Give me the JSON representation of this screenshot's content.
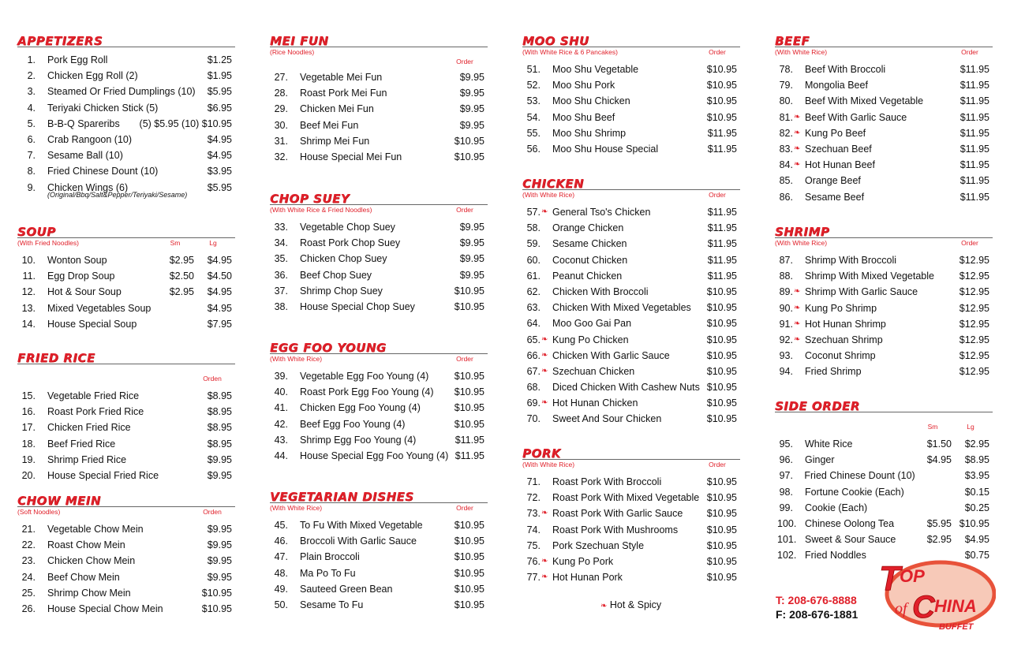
{
  "sections": [
    {
      "title": "APPETIZERS",
      "subtitle": "",
      "headers": [],
      "items": [
        {
          "num": "1.",
          "name": "Pork Egg Roll",
          "prices": [
            "$1.25"
          ]
        },
        {
          "num": "2.",
          "name": "Chicken Egg Roll (2)",
          "prices": [
            "$1.95"
          ]
        },
        {
          "num": "3.",
          "name": "Steamed Or Fried Dumplings (10)",
          "prices": [
            "$5.95"
          ]
        },
        {
          "num": "4.",
          "name": "Teriyaki Chicken Stick (5)",
          "prices": [
            "$6.95"
          ]
        },
        {
          "num": "5.",
          "name": "B-B-Q Spareribs",
          "prices": [
            "(5) $5.95 (10) $10.95"
          ]
        },
        {
          "num": "6.",
          "name": "Crab Rangoon (10)",
          "prices": [
            "$4.95"
          ]
        },
        {
          "num": "7.",
          "name": "Sesame Ball (10)",
          "prices": [
            "$4.95"
          ]
        },
        {
          "num": "8.",
          "name": "Fried Chinese Dount (10)",
          "prices": [
            "$3.95"
          ]
        },
        {
          "num": "9.",
          "name": "Chicken Wings (6)",
          "prices": [
            "$5.95"
          ],
          "note": "(Original/Bbq/Salt&Pepper/Teriyaki/Sesame)"
        }
      ]
    },
    {
      "title": "SOUP",
      "subtitle": "(With Fried Noodles)",
      "headers": [
        "Sm",
        "Lg"
      ],
      "items": [
        {
          "num": "10.",
          "name": "Wonton Soup",
          "prices": [
            "$2.95",
            "$4.95"
          ]
        },
        {
          "num": "11.",
          "name": "Egg Drop Soup",
          "prices": [
            "$2.50",
            "$4.50"
          ]
        },
        {
          "num": "12.",
          "name": "Hot & Sour Soup",
          "prices": [
            "$2.95",
            "$4.95"
          ]
        },
        {
          "num": "13.",
          "name": "Mixed Vegetables Soup",
          "prices": [
            "",
            "$4.95"
          ]
        },
        {
          "num": "14.",
          "name": "House Special Soup",
          "prices": [
            "",
            "$7.95"
          ]
        }
      ]
    },
    {
      "title": "FRIED RICE",
      "subtitle": "",
      "headers": [
        "Orden"
      ],
      "items": [
        {
          "num": "15.",
          "name": "Vegetable Fried Rice",
          "prices": [
            "$8.95"
          ]
        },
        {
          "num": "16.",
          "name": "Roast Pork Fried Rice",
          "prices": [
            "$8.95"
          ]
        },
        {
          "num": "17.",
          "name": "Chicken Fried Rice",
          "prices": [
            "$8.95"
          ]
        },
        {
          "num": "18.",
          "name": "Beef Fried Rice",
          "prices": [
            "$8.95"
          ]
        },
        {
          "num": "19.",
          "name": "Shrimp Fried Rice",
          "prices": [
            "$9.95"
          ]
        },
        {
          "num": "20.",
          "name": "House Special Fried Rice",
          "prices": [
            "$9.95"
          ]
        }
      ]
    },
    {
      "title": "CHOW MEIN",
      "subtitle": "(Soft Noodles)",
      "headers": [
        "Orden"
      ],
      "items": [
        {
          "num": "21.",
          "name": "Vegetable Chow Mein",
          "prices": [
            "$9.95"
          ]
        },
        {
          "num": "22.",
          "name": "Roast Chow Mein",
          "prices": [
            "$9.95"
          ]
        },
        {
          "num": "23.",
          "name": "Chicken Chow Mein",
          "prices": [
            "$9.95"
          ]
        },
        {
          "num": "24.",
          "name": "Beef Chow Mein",
          "prices": [
            "$9.95"
          ]
        },
        {
          "num": "25.",
          "name": "Shrimp Chow Mein",
          "prices": [
            "$10.95"
          ]
        },
        {
          "num": "26.",
          "name": "House Special Chow Mein",
          "prices": [
            "$10.95"
          ]
        }
      ]
    },
    {
      "title": "MEI FUN",
      "subtitle": "(Rice Noodles)",
      "headers": [
        "Order"
      ],
      "items": [
        {
          "num": "27.",
          "name": "Vegetable Mei Fun",
          "prices": [
            "$9.95"
          ]
        },
        {
          "num": "28.",
          "name": "Roast Pork Mei Fun",
          "prices": [
            "$9.95"
          ]
        },
        {
          "num": "29.",
          "name": "Chicken Mei Fun",
          "prices": [
            "$9.95"
          ]
        },
        {
          "num": "30.",
          "name": "Beef Mei Fun",
          "prices": [
            "$9.95"
          ]
        },
        {
          "num": "31.",
          "name": "Shrimp Mei Fun",
          "prices": [
            "$10.95"
          ]
        },
        {
          "num": "32.",
          "name": "House Special Mei Fun",
          "prices": [
            "$10.95"
          ]
        }
      ]
    },
    {
      "title": "CHOP SUEY",
      "subtitle": "(With White Rice & Fried Noodles)",
      "headers": [
        "Order"
      ],
      "items": [
        {
          "num": "33.",
          "name": "Vegetable Chop Suey",
          "prices": [
            "$9.95"
          ]
        },
        {
          "num": "34.",
          "name": "Roast Pork Chop Suey",
          "prices": [
            "$9.95"
          ]
        },
        {
          "num": "35.",
          "name": "Chicken Chop Suey",
          "prices": [
            "$9.95"
          ]
        },
        {
          "num": "36.",
          "name": "Beef Chop Suey",
          "prices": [
            "$9.95"
          ]
        },
        {
          "num": "37.",
          "name": "Shrimp Chop Suey",
          "prices": [
            "$10.95"
          ]
        },
        {
          "num": "38.",
          "name": "House Special Chop Suey",
          "prices": [
            "$10.95"
          ]
        }
      ]
    },
    {
      "title": "EGG FOO YOUNG",
      "subtitle": "(With White Rice)",
      "headers": [
        "Order"
      ],
      "items": [
        {
          "num": "39.",
          "name": "Vegetable Egg Foo Young (4)",
          "prices": [
            "$10.95"
          ]
        },
        {
          "num": "40.",
          "name": "Roast Pork Egg Foo Young (4)",
          "prices": [
            "$10.95"
          ]
        },
        {
          "num": "41.",
          "name": "Chicken Egg Foo Young (4)",
          "prices": [
            "$10.95"
          ]
        },
        {
          "num": "42.",
          "name": "Beef Egg Foo Young (4)",
          "prices": [
            "$10.95"
          ]
        },
        {
          "num": "43.",
          "name": "Shrimp Egg Foo Young (4)",
          "prices": [
            "$11.95"
          ]
        },
        {
          "num": "44.",
          "name": "House Special Egg Foo Young (4)",
          "prices": [
            "$11.95"
          ]
        }
      ]
    },
    {
      "title": "VEGETARIAN DISHES",
      "subtitle": "(With White Rice)",
      "headers": [
        "Order"
      ],
      "items": [
        {
          "num": "45.",
          "name": "To Fu With Mixed Vegetable",
          "prices": [
            "$10.95"
          ]
        },
        {
          "num": "46.",
          "name": "Broccoli With Garlic Sauce",
          "prices": [
            "$10.95"
          ]
        },
        {
          "num": "47.",
          "name": "Plain Broccoli",
          "prices": [
            "$10.95"
          ]
        },
        {
          "num": "48.",
          "name": "Ma Po To Fu",
          "prices": [
            "$10.95"
          ]
        },
        {
          "num": "49.",
          "name": "Sauteed Green Bean",
          "prices": [
            "$10.95"
          ]
        },
        {
          "num": "50.",
          "name": "Sesame To Fu",
          "prices": [
            "$10.95"
          ]
        }
      ]
    },
    {
      "title": "MOO SHU",
      "subtitle": "(With White Rice & 6 Pancakes)",
      "headers": [
        "Order"
      ],
      "items": [
        {
          "num": "51.",
          "name": "Moo Shu Vegetable",
          "prices": [
            "$10.95"
          ]
        },
        {
          "num": "52.",
          "name": "Moo Shu Pork",
          "prices": [
            "$10.95"
          ]
        },
        {
          "num": "53.",
          "name": "Moo Shu Chicken",
          "prices": [
            "$10.95"
          ]
        },
        {
          "num": "54.",
          "name": "Moo Shu Beef",
          "prices": [
            "$10.95"
          ]
        },
        {
          "num": "55.",
          "name": "Moo Shu Shrimp",
          "prices": [
            "$11.95"
          ]
        },
        {
          "num": "56.",
          "name": "Moo Shu House Special",
          "prices": [
            "$11.95"
          ]
        }
      ]
    },
    {
      "title": "CHICKEN",
      "subtitle": "(With White Rice)",
      "headers": [
        "Order"
      ],
      "items": [
        {
          "num": "57.",
          "spicy": true,
          "name": "General Tso's Chicken",
          "prices": [
            "$11.95"
          ]
        },
        {
          "num": "58.",
          "name": "Orange Chicken",
          "prices": [
            "$11.95"
          ]
        },
        {
          "num": "59.",
          "name": "Sesame Chicken",
          "prices": [
            "$11.95"
          ]
        },
        {
          "num": "60.",
          "name": "Coconut Chicken",
          "prices": [
            "$11.95"
          ]
        },
        {
          "num": "61.",
          "name": "Peanut Chicken",
          "prices": [
            "$11.95"
          ]
        },
        {
          "num": "62.",
          "name": "Chicken With Broccoli",
          "prices": [
            "$10.95"
          ]
        },
        {
          "num": "63.",
          "name": "Chicken With Mixed Vegetables",
          "prices": [
            "$10.95"
          ]
        },
        {
          "num": "64.",
          "name": "Moo Goo Gai Pan",
          "prices": [
            "$10.95"
          ]
        },
        {
          "num": "65.",
          "spicy": true,
          "name": "Kung Po Chicken",
          "prices": [
            "$10.95"
          ]
        },
        {
          "num": "66.",
          "spicy": true,
          "name": "Chicken With Garlic Sauce",
          "prices": [
            "$10.95"
          ]
        },
        {
          "num": "67.",
          "spicy": true,
          "name": "Szechuan Chicken",
          "prices": [
            "$10.95"
          ]
        },
        {
          "num": "68.",
          "name": "Diced Chicken With Cashew Nuts",
          "prices": [
            "$10.95"
          ]
        },
        {
          "num": "69.",
          "spicy": true,
          "name": "Hot Hunan Chicken",
          "prices": [
            "$10.95"
          ]
        },
        {
          "num": "70.",
          "name": "Sweet And Sour Chicken",
          "prices": [
            "$10.95"
          ]
        }
      ]
    },
    {
      "title": "PORK",
      "subtitle": "(With White Rice)",
      "headers": [
        "Order"
      ],
      "items": [
        {
          "num": "71.",
          "name": "Roast Pork With Broccoli",
          "prices": [
            "$10.95"
          ]
        },
        {
          "num": "72.",
          "name": "Roast Pork With Mixed Vegetable",
          "prices": [
            "$10.95"
          ]
        },
        {
          "num": "73.",
          "spicy": true,
          "name": "Roast Pork With Garlic Sauce",
          "prices": [
            "$10.95"
          ]
        },
        {
          "num": "74.",
          "name": "Roast Pork With Mushrooms",
          "prices": [
            "$10.95"
          ]
        },
        {
          "num": "75.",
          "name": "Pork Szechuan Style",
          "prices": [
            "$10.95"
          ]
        },
        {
          "num": "76.",
          "spicy": true,
          "name": "Kung Po Pork",
          "prices": [
            "$10.95"
          ]
        },
        {
          "num": "77.",
          "spicy": true,
          "name": "Hot Hunan Pork",
          "prices": [
            "$10.95"
          ]
        }
      ]
    },
    {
      "title": "BEEF",
      "subtitle": "(With White Rice)",
      "headers": [
        "Order"
      ],
      "items": [
        {
          "num": "78.",
          "name": "Beef With Broccoli",
          "prices": [
            "$11.95"
          ]
        },
        {
          "num": "79.",
          "name": "Mongolia Beef",
          "prices": [
            "$11.95"
          ]
        },
        {
          "num": "80.",
          "name": "Beef With Mixed Vegetable",
          "prices": [
            "$11.95"
          ]
        },
        {
          "num": "81.",
          "spicy": true,
          "name": "Beef With Garlic Sauce",
          "prices": [
            "$11.95"
          ]
        },
        {
          "num": "82.",
          "spicy": true,
          "name": "Kung Po Beef",
          "prices": [
            "$11.95"
          ]
        },
        {
          "num": "83.",
          "spicy": true,
          "name": "Szechuan Beef",
          "prices": [
            "$11.95"
          ]
        },
        {
          "num": "84.",
          "spicy": true,
          "name": "Hot Hunan Beef",
          "prices": [
            "$11.95"
          ]
        },
        {
          "num": "85.",
          "name": "Orange Beef",
          "prices": [
            "$11.95"
          ]
        },
        {
          "num": "86.",
          "name": "Sesame Beef",
          "prices": [
            "$11.95"
          ]
        }
      ]
    },
    {
      "title": "SHRIMP",
      "subtitle": "(With White Rice)",
      "headers": [
        "Order"
      ],
      "items": [
        {
          "num": "87.",
          "name": "Shrimp With Broccoli",
          "prices": [
            "$12.95"
          ]
        },
        {
          "num": "88.",
          "name": "Shrimp With Mixed Vegetable",
          "prices": [
            "$12.95"
          ]
        },
        {
          "num": "89.",
          "spicy": true,
          "name": "Shrimp With Garlic Sauce",
          "prices": [
            "$12.95"
          ]
        },
        {
          "num": "90.",
          "spicy": true,
          "name": "Kung Po Shrimp",
          "prices": [
            "$12.95"
          ]
        },
        {
          "num": "91.",
          "spicy": true,
          "name": "Hot Hunan Shrimp",
          "prices": [
            "$12.95"
          ]
        },
        {
          "num": "92.",
          "spicy": true,
          "name": "Szechuan Shrimp",
          "prices": [
            "$12.95"
          ]
        },
        {
          "num": "93.",
          "name": "Coconut Shrimp",
          "prices": [
            "$12.95"
          ]
        },
        {
          "num": "94.",
          "name": "Fried Shrimp",
          "prices": [
            "$12.95"
          ]
        }
      ]
    },
    {
      "title": "SIDE ORDER",
      "subtitle": "",
      "headers": [
        "Sm",
        "Lg"
      ],
      "items": [
        {
          "num": "95.",
          "name": "White Rice",
          "prices": [
            "$1.50",
            "$2.95"
          ]
        },
        {
          "num": "96.",
          "name": "Ginger",
          "prices": [
            "$4.95",
            "$8.95"
          ]
        },
        {
          "num": "97.",
          "name": "Fried Chinese Dount (10)",
          "prices": [
            "",
            "$3.95"
          ]
        },
        {
          "num": "98.",
          "name": "Fortune Cookie (Each)",
          "prices": [
            "",
            "$0.15"
          ]
        },
        {
          "num": "99.",
          "name": "Cookie (Each)",
          "prices": [
            "",
            "$0.25"
          ]
        },
        {
          "num": "100.",
          "name": "Chinese Oolong Tea",
          "prices": [
            "$5.95",
            "$10.95"
          ]
        },
        {
          "num": "101.",
          "name": "Sweet & Sour Sauce",
          "prices": [
            "$2.95",
            "$4.95"
          ]
        },
        {
          "num": "102.",
          "name": "Fried Noddles",
          "prices": [
            "",
            "$0.75"
          ]
        }
      ]
    }
  ],
  "legend": {
    "icon": "chili-pepper-icon",
    "label": "Hot & Spicy"
  },
  "contact": {
    "phone": "T: 208-676-8888",
    "fax": "F: 208-676-1881"
  },
  "logo": {
    "line1": "Top",
    "line2": "of",
    "line3": "China",
    "line4": "BUFFET"
  },
  "colors": {
    "accent": "#e0202a"
  }
}
